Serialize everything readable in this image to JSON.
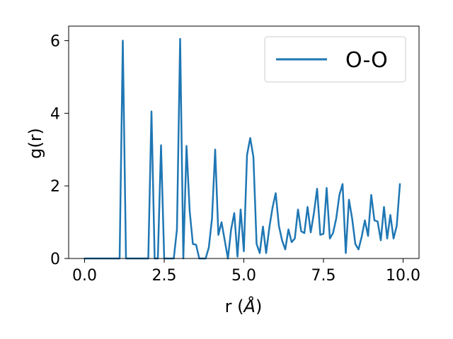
{
  "chart_data": {
    "type": "line",
    "title": "",
    "xlabel": "r (",
    "xlabel_unit": "Å",
    "xlabel_close": ")",
    "ylabel": "g(r)",
    "xlim": [
      -0.5,
      10.5
    ],
    "ylim": [
      0,
      6.4
    ],
    "xticks": [
      0.0,
      2.5,
      5.0,
      7.5,
      10.0
    ],
    "xtick_labels": [
      "0.0",
      "2.5",
      "5.0",
      "7.5",
      "10.0"
    ],
    "yticks": [
      0,
      2,
      4,
      6
    ],
    "ytick_labels": [
      "0",
      "2",
      "4",
      "6"
    ],
    "grid": false,
    "legend_position": "top-right",
    "series": [
      {
        "name": "O-O",
        "color": "#1f77b4",
        "x": [
          0.0,
          0.1,
          0.2,
          0.3,
          0.4,
          0.5,
          0.6,
          0.7,
          0.8,
          0.9,
          1.0,
          1.1,
          1.2,
          1.3,
          1.4,
          1.5,
          1.6,
          1.7,
          1.8,
          1.9,
          2.0,
          2.1,
          2.2,
          2.3,
          2.4,
          2.5,
          2.6,
          2.7,
          2.8,
          2.9,
          3.0,
          3.1,
          3.2,
          3.3,
          3.4,
          3.5,
          3.6,
          3.7,
          3.8,
          3.9,
          4.0,
          4.1,
          4.2,
          4.3,
          4.4,
          4.5,
          4.6,
          4.7,
          4.8,
          4.9,
          5.0,
          5.1,
          5.2,
          5.3,
          5.4,
          5.5,
          5.6,
          5.7,
          5.8,
          5.9,
          6.0,
          6.1,
          6.2,
          6.3,
          6.4,
          6.5,
          6.6,
          6.7,
          6.8,
          6.9,
          7.0,
          7.1,
          7.2,
          7.3,
          7.4,
          7.5,
          7.6,
          7.7,
          7.8,
          7.9,
          8.0,
          8.1,
          8.2,
          8.3,
          8.4,
          8.5,
          8.6,
          8.7,
          8.8,
          8.9,
          9.0,
          9.1,
          9.2,
          9.3,
          9.4,
          9.5,
          9.6,
          9.7,
          9.8,
          9.9
        ],
        "y": [
          0,
          0,
          0,
          0,
          0,
          0,
          0,
          0,
          0,
          0,
          0,
          0,
          6.0,
          0,
          0,
          0,
          0,
          0,
          0,
          0,
          0,
          4.05,
          0,
          0,
          3.12,
          0,
          0,
          0,
          0,
          0.8,
          6.05,
          0,
          3.1,
          1.3,
          0.4,
          0.38,
          0,
          0,
          0,
          0.3,
          1.1,
          3.0,
          0.65,
          1.0,
          0.5,
          0,
          0.8,
          1.25,
          0.05,
          1.35,
          0.2,
          2.85,
          3.32,
          2.8,
          0.4,
          0.15,
          0.88,
          0.15,
          0.85,
          1.4,
          1.8,
          0.9,
          0.5,
          0.25,
          0.8,
          0.45,
          0.55,
          1.35,
          0.75,
          0.7,
          1.42,
          0.72,
          1.25,
          1.92,
          0.65,
          0.68,
          1.94,
          0.55,
          0.7,
          1.1,
          1.75,
          2.05,
          0.15,
          1.62,
          1.1,
          0.4,
          0.25,
          0.6,
          1.05,
          0.62,
          1.75,
          1.05,
          1.02,
          0.5,
          1.42,
          0.55,
          1.2,
          0.55,
          0.9,
          2.05
        ]
      }
    ]
  }
}
